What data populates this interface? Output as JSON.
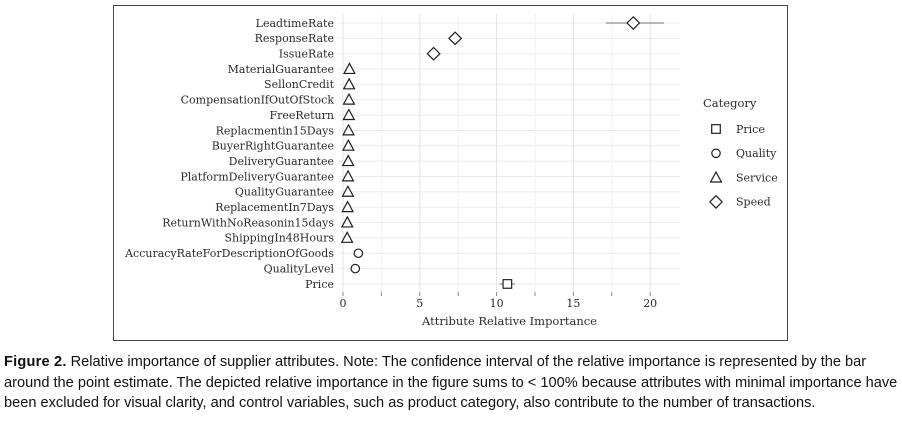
{
  "chart_data": {
    "type": "scatter",
    "subtype": "dot-plot-with-confidence-intervals",
    "xlabel": "Attribute Relative Importance",
    "ylabel": "",
    "xlim": [
      -0.5,
      22.3
    ],
    "x_major_ticks": [
      0,
      5,
      10,
      15,
      20
    ],
    "x_minor_ticks": [
      2.5,
      7.5,
      12.5,
      17.5
    ],
    "grid": "on",
    "legend": {
      "title": "Category",
      "position": "right",
      "entries": [
        {
          "label": "Price",
          "marker": "square"
        },
        {
          "label": "Quality",
          "marker": "circle"
        },
        {
          "label": "Service",
          "marker": "triangle"
        },
        {
          "label": "Speed",
          "marker": "diamond"
        }
      ]
    },
    "points": [
      {
        "label": "LeadtimeRate",
        "category": "Speed",
        "marker": "diamond",
        "value": 18.9,
        "ci_low": 17.1,
        "ci_high": 20.9
      },
      {
        "label": "ResponseRate",
        "category": "Speed",
        "marker": "diamond",
        "value": 7.3,
        "ci_low": 6.9,
        "ci_high": 7.6
      },
      {
        "label": "IssueRate",
        "category": "Speed",
        "marker": "diamond",
        "value": 5.9,
        "ci_low": 5.6,
        "ci_high": 6.2
      },
      {
        "label": "MaterialGuarantee",
        "category": "Service",
        "marker": "triangle",
        "value": 0.42,
        "ci_low": 0.3,
        "ci_high": 0.54
      },
      {
        "label": "SellonCredit",
        "category": "Service",
        "marker": "triangle",
        "value": 0.4,
        "ci_low": 0.29,
        "ci_high": 0.51
      },
      {
        "label": "CompensationIfOutOfStock",
        "category": "Service",
        "marker": "triangle",
        "value": 0.39,
        "ci_low": 0.28,
        "ci_high": 0.5
      },
      {
        "label": "FreeReturn",
        "category": "Service",
        "marker": "triangle",
        "value": 0.38,
        "ci_low": 0.27,
        "ci_high": 0.49
      },
      {
        "label": "Replacmentin15Days",
        "category": "Service",
        "marker": "triangle",
        "value": 0.36,
        "ci_low": 0.26,
        "ci_high": 0.46
      },
      {
        "label": "BuyerRightGuarantee",
        "category": "Service",
        "marker": "triangle",
        "value": 0.35,
        "ci_low": 0.25,
        "ci_high": 0.45
      },
      {
        "label": "DeliveryGuarantee",
        "category": "Service",
        "marker": "triangle",
        "value": 0.34,
        "ci_low": 0.24,
        "ci_high": 0.44
      },
      {
        "label": "PlatformDeliveryGuarantee",
        "category": "Service",
        "marker": "triangle",
        "value": 0.33,
        "ci_low": 0.23,
        "ci_high": 0.43
      },
      {
        "label": "QualityGuarantee",
        "category": "Service",
        "marker": "triangle",
        "value": 0.32,
        "ci_low": 0.22,
        "ci_high": 0.42
      },
      {
        "label": "ReplacementIn7Days",
        "category": "Service",
        "marker": "triangle",
        "value": 0.3,
        "ci_low": 0.2,
        "ci_high": 0.4
      },
      {
        "label": "ReturnWithNoReasonin15days",
        "category": "Service",
        "marker": "triangle",
        "value": 0.28,
        "ci_low": 0.18,
        "ci_high": 0.38
      },
      {
        "label": "ShippingIn48Hours",
        "category": "Service",
        "marker": "triangle",
        "value": 0.27,
        "ci_low": 0.17,
        "ci_high": 0.37
      },
      {
        "label": "AccuracyRateForDescriptionOfGoods",
        "category": "Quality",
        "marker": "circle",
        "value": 1.0,
        "ci_low": 0.85,
        "ci_high": 1.15
      },
      {
        "label": "QualityLevel",
        "category": "Quality",
        "marker": "circle",
        "value": 0.8,
        "ci_low": 0.65,
        "ci_high": 0.95
      },
      {
        "label": "Price",
        "category": "Price",
        "marker": "square",
        "value": 10.7,
        "ci_low": 10.2,
        "ci_high": 11.2
      }
    ]
  },
  "colors": {
    "marker_stroke": "#1f1f1f",
    "marker_fill": "#ffffff",
    "ci_bar": "#8f8f8f",
    "grid_major": "#e3e3e3",
    "grid_minor": "#f2f2f2",
    "row_grid": "#ebebeb",
    "tick": "#8a8a8a",
    "axis_text": "#2b2b2b",
    "box_border": "#454545"
  },
  "caption": {
    "figure_label": "Figure 2.",
    "text": "Relative importance of supplier attributes. Note: The confidence interval of the relative importance is represented by the bar around the point estimate. The depicted relative importance in the figure sums to < 100% because attributes with minimal importance have been excluded for visual clarity, and control variables, such as product category, also contribute to the number of transactions."
  }
}
